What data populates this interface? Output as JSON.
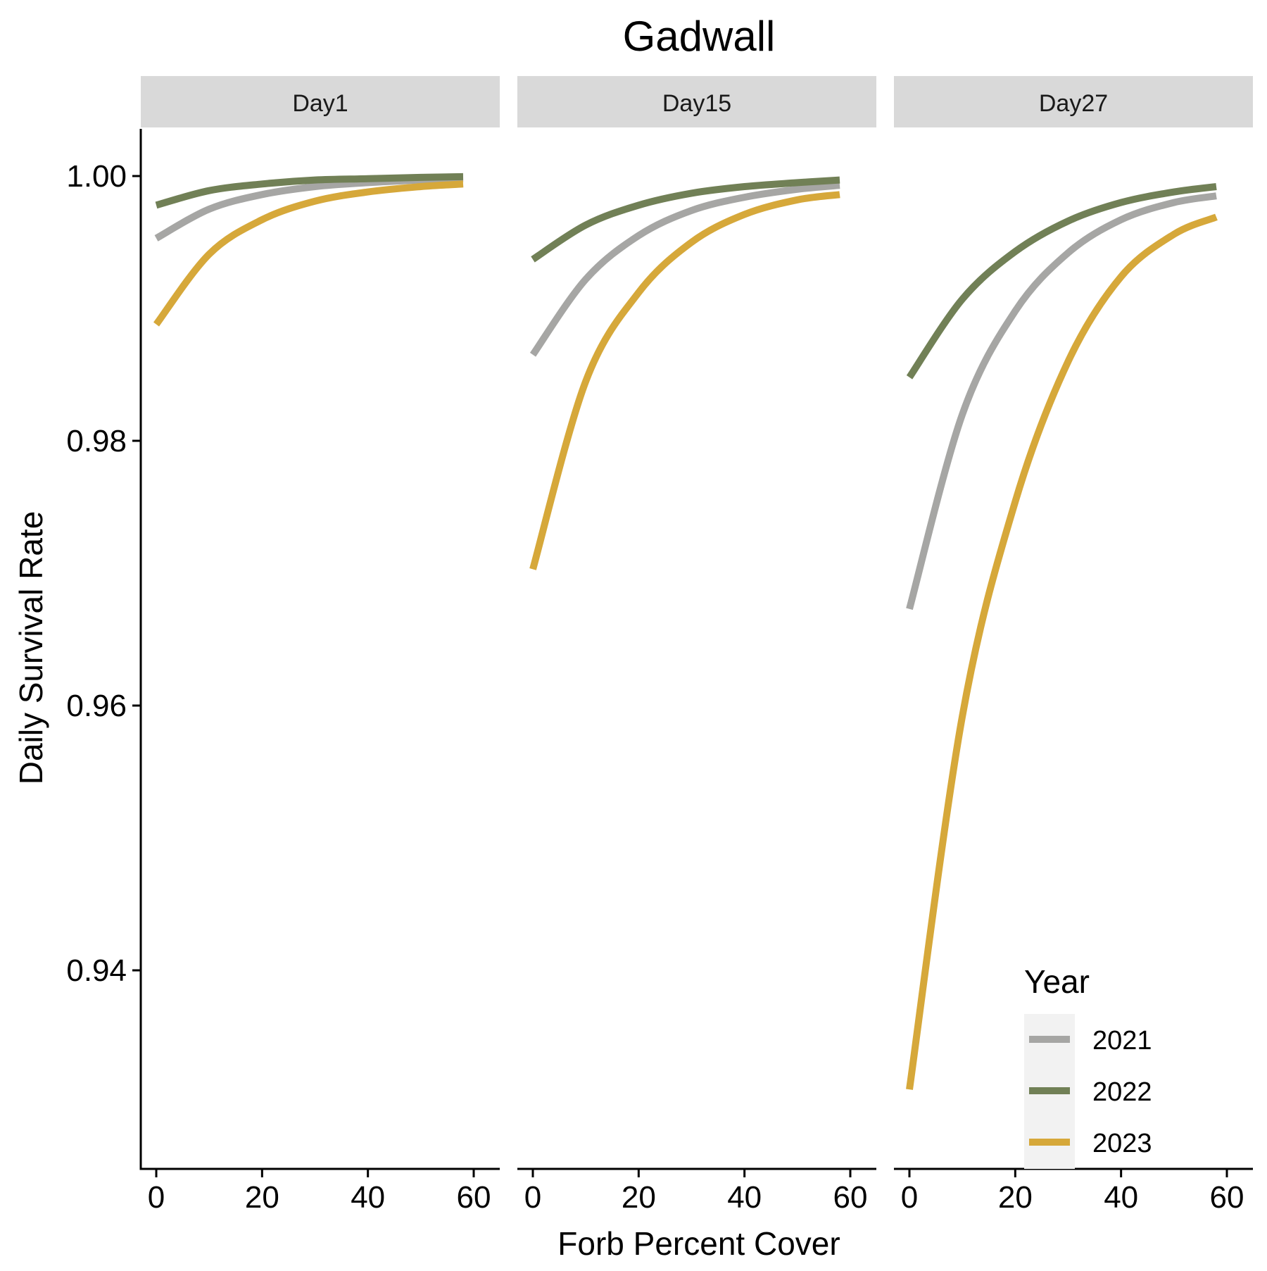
{
  "chart_data": {
    "type": "line",
    "title": "Gadwall",
    "xlabel": "Forb Percent Cover",
    "ylabel": "Daily Survival Rate",
    "xlim": [
      0,
      60
    ],
    "ylim": [
      0.925,
      1.0
    ],
    "x_ticks": [
      "0",
      "20",
      "40",
      "60"
    ],
    "x_tick_values": [
      0,
      20,
      40,
      60
    ],
    "y_ticks": [
      "0.94",
      "0.96",
      "0.98",
      "1.00"
    ],
    "y_tick_values": [
      0.94,
      0.96,
      0.98,
      1.0
    ],
    "grid": false,
    "legend": {
      "title": "Year",
      "placement": "bottom-right",
      "entries": [
        "2021",
        "2022",
        "2023"
      ]
    },
    "colors": {
      "2021": "#a6a6a4",
      "2022": "#718056",
      "2023": "#d6a83a"
    },
    "x": [
      0,
      10,
      20,
      30,
      40,
      50,
      58
    ],
    "panels": [
      {
        "name": "Day1",
        "series": [
          {
            "name": "2021",
            "values": [
              0.9953,
              0.9975,
              0.9986,
              0.9992,
              0.9995,
              0.9997,
              0.9998
            ]
          },
          {
            "name": "2022",
            "values": [
              0.9978,
              0.9989,
              0.9994,
              0.9997,
              0.9998,
              0.9999,
              0.99995
            ]
          },
          {
            "name": "2023",
            "values": [
              0.9888,
              0.9941,
              0.9967,
              0.9981,
              0.9988,
              0.9992,
              0.9994
            ]
          }
        ]
      },
      {
        "name": "Day15",
        "series": [
          {
            "name": "2021",
            "values": [
              0.9865,
              0.9922,
              0.9955,
              0.9974,
              0.9984,
              0.999,
              0.9993
            ]
          },
          {
            "name": "2022",
            "values": [
              0.9937,
              0.9963,
              0.9978,
              0.9987,
              0.9992,
              0.9995,
              0.9997
            ]
          },
          {
            "name": "2023",
            "values": [
              0.9703,
              0.9845,
              0.9912,
              0.995,
              0.9971,
              0.9982,
              0.9986
            ]
          }
        ]
      },
      {
        "name": "Day27",
        "series": [
          {
            "name": "2021",
            "values": [
              0.9673,
              0.982,
              0.9898,
              0.9942,
              0.9967,
              0.998,
              0.9985
            ]
          },
          {
            "name": "2022",
            "values": [
              0.9848,
              0.9907,
              0.9943,
              0.9966,
              0.998,
              0.9988,
              0.9992
            ]
          },
          {
            "name": "2023",
            "values": [
              0.931,
              0.9592,
              0.9754,
              0.986,
              0.9924,
              0.9956,
              0.9969
            ]
          }
        ]
      }
    ]
  }
}
